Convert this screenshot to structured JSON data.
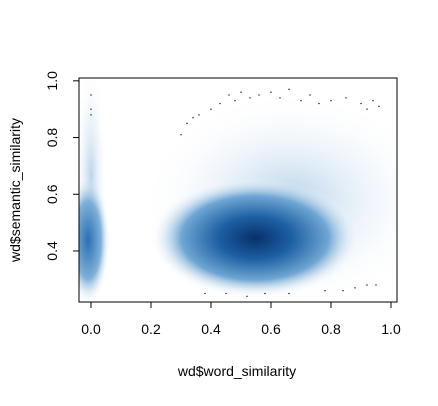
{
  "chart_data": {
    "type": "scatter",
    "x_label": "wd$word_similarity",
    "y_label": "wd$semantic_similarity",
    "xlim": [
      -0.04,
      1.02
    ],
    "ylim": [
      0.22,
      1.01
    ],
    "xticks": [
      {
        "value": 0,
        "label": "0.0"
      },
      0.2,
      0.4,
      0.6,
      0.8,
      {
        "value": 1,
        "label": "1.0"
      }
    ],
    "yticks": [
      0.4,
      0.6,
      0.8,
      {
        "value": 1,
        "label": "1.0"
      }
    ],
    "color": "#000000",
    "x": [
      0,
      0,
      0,
      0.3,
      0.32,
      0.34,
      0.36,
      0.4,
      0.43,
      0.46,
      0.48,
      0.5,
      0.53,
      0.56,
      0.6,
      0.63,
      0.66,
      0.7,
      0.73,
      0.76,
      0.8,
      0.85,
      0.9,
      0.92,
      0.94,
      0.96,
      0.38,
      0.45,
      0.52,
      0.58,
      0.66,
      0.78,
      0.84,
      0.88,
      0.92,
      0.95
    ],
    "y": [
      0.95,
      0.9,
      0.88,
      0.81,
      0.85,
      0.87,
      0.88,
      0.9,
      0.92,
      0.95,
      0.93,
      0.96,
      0.94,
      0.95,
      0.96,
      0.94,
      0.97,
      0.93,
      0.95,
      0.92,
      0.93,
      0.94,
      0.92,
      0.9,
      0.93,
      0.91,
      0.25,
      0.25,
      0.24,
      0.25,
      0.25,
      0.26,
      0.26,
      0.27,
      0.28,
      0.28
    ]
  }
}
